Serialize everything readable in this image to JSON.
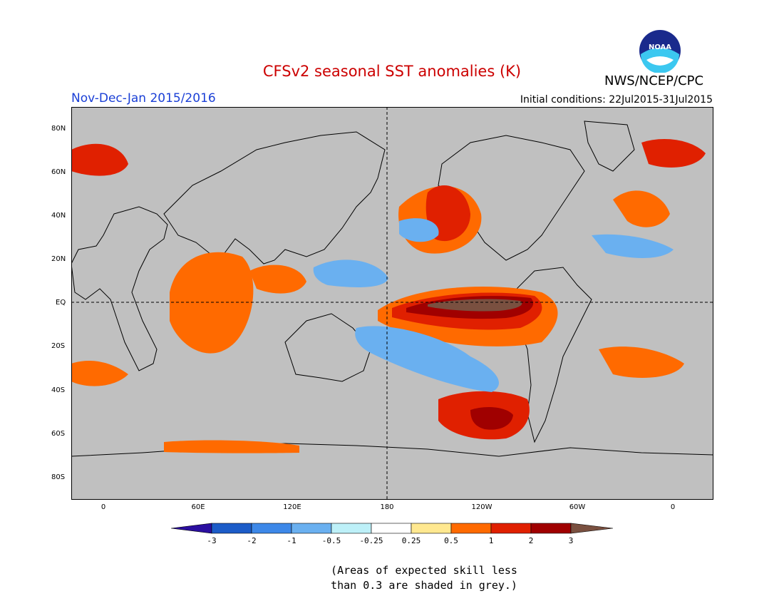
{
  "header": {
    "title": "CFSv2 seasonal SST anomalies (K)",
    "season": "Nov-Dec-Jan 2015/2016",
    "initial_conditions": "Initial conditions: 22Jul2015-31Jul2015",
    "agency": "NWS/NCEP/CPC",
    "logo_text": "NOAA"
  },
  "colors": {
    "title": "#cc0000",
    "season": "#1a3fd6",
    "grey_low_skill": "#c0c0c0"
  },
  "map": {
    "lat_labels": [
      "80N",
      "60N",
      "40N",
      "20N",
      "EQ",
      "20S",
      "40S",
      "60S",
      "80S"
    ],
    "lon_labels": [
      "0",
      "60E",
      "120E",
      "180",
      "120W",
      "60W",
      "0"
    ]
  },
  "colorbar": {
    "labels": [
      "-3",
      "-2",
      "-1",
      "-0.5",
      "-0.25",
      "0.25",
      "0.5",
      "1",
      "2",
      "3"
    ],
    "colors": [
      "#2b0fa0",
      "#1c5cc8",
      "#3d88e8",
      "#6ab0f0",
      "#bdf0f8",
      "#ffffff",
      "#ffe890",
      "#ff6a00",
      "#e02000",
      "#a00000",
      "#7a5040"
    ]
  },
  "note": {
    "line1": "(Areas of expected skill less",
    "line2": "than 0.3 are shaded in grey.)"
  }
}
